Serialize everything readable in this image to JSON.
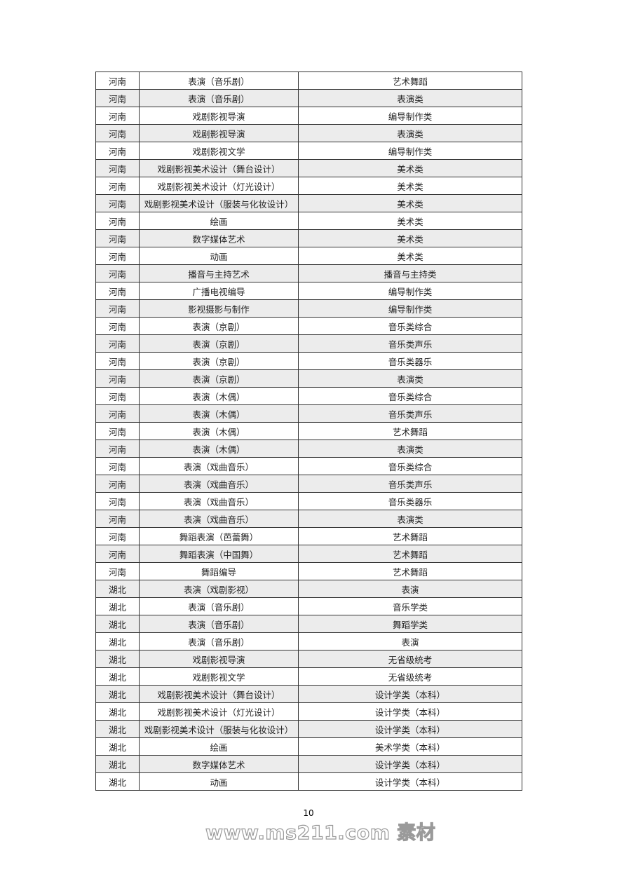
{
  "table": {
    "rows": [
      [
        "河南",
        "表演（音乐剧）",
        "艺术舞蹈"
      ],
      [
        "河南",
        "表演（音乐剧）",
        "表演类"
      ],
      [
        "河南",
        "戏剧影视导演",
        "编导制作类"
      ],
      [
        "河南",
        "戏剧影视导演",
        "表演类"
      ],
      [
        "河南",
        "戏剧影视文学",
        "编导制作类"
      ],
      [
        "河南",
        "戏剧影视美术设计（舞台设计）",
        "美术类"
      ],
      [
        "河南",
        "戏剧影视美术设计（灯光设计）",
        "美术类"
      ],
      [
        "河南",
        "戏剧影视美术设计（服装与化妆设计）",
        "美术类"
      ],
      [
        "河南",
        "绘画",
        "美术类"
      ],
      [
        "河南",
        "数字媒体艺术",
        "美术类"
      ],
      [
        "河南",
        "动画",
        "美术类"
      ],
      [
        "河南",
        "播音与主持艺术",
        "播音与主持类"
      ],
      [
        "河南",
        "广播电视编导",
        "编导制作类"
      ],
      [
        "河南",
        "影视摄影与制作",
        "编导制作类"
      ],
      [
        "河南",
        "表演（京剧）",
        "音乐类综合"
      ],
      [
        "河南",
        "表演（京剧）",
        "音乐类声乐"
      ],
      [
        "河南",
        "表演（京剧）",
        "音乐类器乐"
      ],
      [
        "河南",
        "表演（京剧）",
        "表演类"
      ],
      [
        "河南",
        "表演（木偶）",
        "音乐类综合"
      ],
      [
        "河南",
        "表演（木偶）",
        "音乐类声乐"
      ],
      [
        "河南",
        "表演（木偶）",
        "艺术舞蹈"
      ],
      [
        "河南",
        "表演（木偶）",
        "表演类"
      ],
      [
        "河南",
        "表演（戏曲音乐）",
        "音乐类综合"
      ],
      [
        "河南",
        "表演（戏曲音乐）",
        "音乐类声乐"
      ],
      [
        "河南",
        "表演（戏曲音乐）",
        "音乐类器乐"
      ],
      [
        "河南",
        "表演（戏曲音乐）",
        "表演类"
      ],
      [
        "河南",
        "舞蹈表演（芭蕾舞）",
        "艺术舞蹈"
      ],
      [
        "河南",
        "舞蹈表演（中国舞）",
        "艺术舞蹈"
      ],
      [
        "河南",
        "舞蹈编导",
        "艺术舞蹈"
      ],
      [
        "湖北",
        "表演（戏剧影视）",
        "表演"
      ],
      [
        "湖北",
        "表演（音乐剧）",
        "音乐学类"
      ],
      [
        "湖北",
        "表演（音乐剧）",
        "舞蹈学类"
      ],
      [
        "湖北",
        "表演（音乐剧）",
        "表演"
      ],
      [
        "湖北",
        "戏剧影视导演",
        "无省级统考"
      ],
      [
        "湖北",
        "戏剧影视文学",
        "无省级统考"
      ],
      [
        "湖北",
        "戏剧影视美术设计（舞台设计）",
        "设计学类（本科）"
      ],
      [
        "湖北",
        "戏剧影视美术设计（灯光设计）",
        "设计学类（本科）"
      ],
      [
        "湖北",
        "戏剧影视美术设计（服装与化妆设计）",
        "设计学类（本科）"
      ],
      [
        "湖北",
        "绘画",
        "美术学类（本科）"
      ],
      [
        "湖北",
        "数字媒体艺术",
        "设计学类（本科）"
      ],
      [
        "湖北",
        "动画",
        "设计学类（本科）"
      ]
    ],
    "shade_color": "#ececec"
  },
  "page_number": "10",
  "watermark": "www.ms211.com 素材"
}
